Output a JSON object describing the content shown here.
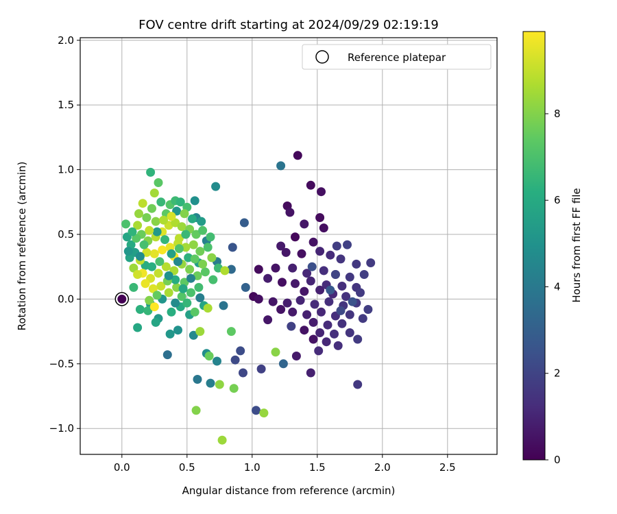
{
  "chart_data": {
    "type": "scatter",
    "title": "FOV centre drift starting at 2024/09/29 02:19:19",
    "xlabel": "Angular distance from reference (arcmin)",
    "ylabel": "Rotation from reference (arcmin)",
    "xlim": [
      -0.32,
      2.88
    ],
    "ylim": [
      -1.2,
      2.02
    ],
    "xticks": [
      "0.0",
      "0.5",
      "1.0",
      "1.5",
      "2.0",
      "2.5"
    ],
    "yticks": [
      "−1.0",
      "−0.5",
      "0.0",
      "0.5",
      "1.0",
      "1.5",
      "2.0"
    ],
    "grid": true,
    "legend": {
      "position": "top-right",
      "entries": [
        "Reference platepar"
      ]
    },
    "reference_point": {
      "x": 0.0,
      "y": 0.0
    },
    "colorbar": {
      "label": "Hours from first FF file",
      "min": 0,
      "max": 9.9,
      "ticks": [
        "0",
        "2",
        "4",
        "6",
        "8"
      ],
      "colormap": "viridis"
    },
    "series": [
      {
        "points": [
          [
            1.35,
            1.11,
            0.2
          ],
          [
            1.45,
            0.88,
            0.3
          ],
          [
            1.53,
            0.83,
            0.4
          ],
          [
            1.27,
            0.72,
            0.3
          ],
          [
            1.29,
            0.67,
            0.5
          ],
          [
            1.52,
            0.63,
            0.3
          ],
          [
            1.4,
            0.58,
            0.6
          ],
          [
            1.55,
            0.55,
            0.4
          ],
          [
            1.33,
            0.48,
            0.2
          ],
          [
            1.47,
            0.44,
            0.5
          ],
          [
            1.22,
            0.41,
            0.7
          ],
          [
            1.65,
            0.41,
            1.8
          ],
          [
            1.73,
            0.42,
            1.9
          ],
          [
            1.26,
            0.36,
            0.6
          ],
          [
            1.38,
            0.35,
            0.4
          ],
          [
            1.52,
            0.37,
            1.0
          ],
          [
            1.6,
            0.34,
            1.2
          ],
          [
            1.68,
            0.31,
            1.5
          ],
          [
            1.8,
            0.27,
            1.6
          ],
          [
            1.91,
            0.28,
            1.7
          ],
          [
            1.05,
            0.23,
            0.3
          ],
          [
            1.18,
            0.24,
            0.5
          ],
          [
            1.31,
            0.24,
            0.9
          ],
          [
            1.42,
            0.2,
            1.1
          ],
          [
            1.55,
            0.22,
            1.3
          ],
          [
            1.64,
            0.19,
            1.4
          ],
          [
            1.75,
            0.17,
            1.6
          ],
          [
            1.86,
            0.19,
            1.8
          ],
          [
            1.12,
            0.16,
            0.8
          ],
          [
            1.23,
            0.13,
            0.4
          ],
          [
            1.33,
            0.12,
            0.7
          ],
          [
            1.45,
            0.14,
            1.0
          ],
          [
            1.57,
            0.11,
            1.2
          ],
          [
            1.69,
            0.1,
            1.3
          ],
          [
            1.8,
            0.09,
            1.5
          ],
          [
            1.4,
            0.06,
            0.6
          ],
          [
            1.52,
            0.07,
            0.9
          ],
          [
            1.62,
            0.04,
            1.1
          ],
          [
            1.72,
            0.02,
            1.4
          ],
          [
            1.83,
            0.05,
            1.7
          ],
          [
            1.01,
            0.02,
            0.2
          ],
          [
            1.05,
            0.0,
            0.4
          ],
          [
            1.16,
            -0.02,
            0.6
          ],
          [
            1.27,
            -0.03,
            0.8
          ],
          [
            1.37,
            -0.01,
            1.0
          ],
          [
            1.48,
            -0.04,
            1.2
          ],
          [
            1.59,
            -0.02,
            1.3
          ],
          [
            1.7,
            -0.05,
            1.5
          ],
          [
            1.8,
            -0.03,
            1.6
          ],
          [
            1.89,
            -0.08,
            1.8
          ],
          [
            1.22,
            -0.08,
            0.5
          ],
          [
            1.31,
            -0.1,
            0.7
          ],
          [
            1.42,
            -0.12,
            0.9
          ],
          [
            1.53,
            -0.1,
            1.1
          ],
          [
            1.64,
            -0.13,
            1.3
          ],
          [
            1.75,
            -0.12,
            1.5
          ],
          [
            1.85,
            -0.15,
            1.7
          ],
          [
            1.12,
            -0.16,
            0.6
          ],
          [
            1.47,
            -0.18,
            0.8
          ],
          [
            1.58,
            -0.2,
            1.2
          ],
          [
            1.69,
            -0.19,
            1.4
          ],
          [
            1.3,
            -0.21,
            1.9
          ],
          [
            1.4,
            -0.24,
            0.5
          ],
          [
            1.52,
            -0.26,
            1.0
          ],
          [
            1.63,
            -0.27,
            1.3
          ],
          [
            1.75,
            -0.26,
            1.5
          ],
          [
            1.47,
            -0.31,
            0.5
          ],
          [
            1.57,
            -0.33,
            1.1
          ],
          [
            1.66,
            -0.36,
            1.3
          ],
          [
            1.81,
            -0.31,
            1.7
          ],
          [
            1.34,
            -0.44,
            0.7
          ],
          [
            1.51,
            -0.4,
            1.2
          ],
          [
            1.45,
            -0.57,
            0.9
          ],
          [
            1.81,
            -0.66,
            1.6
          ],
          [
            1.07,
            -0.54,
            1.9
          ],
          [
            0.93,
            -0.57,
            2.1
          ],
          [
            0.87,
            -0.47,
            2.2
          ],
          [
            0.91,
            -0.4,
            2.3
          ],
          [
            1.03,
            -0.86,
            2.3
          ],
          [
            0.85,
            0.4,
            2.6
          ],
          [
            0.94,
            0.59,
            2.9
          ],
          [
            0.84,
            0.23,
            3.4
          ],
          [
            0.95,
            0.09,
            3.1
          ],
          [
            1.22,
            1.03,
            3.8
          ],
          [
            1.24,
            -0.5,
            3.2
          ],
          [
            1.46,
            0.25,
            2.4
          ],
          [
            1.64,
            0.19,
            2.0
          ],
          [
            1.68,
            -0.09,
            2.2
          ],
          [
            1.77,
            -0.02,
            2.5
          ],
          [
            1.6,
            0.07,
            2.7
          ],
          [
            0.72,
            0.87,
            4.7
          ],
          [
            0.57,
            0.63,
            4.5
          ],
          [
            0.65,
            0.45,
            4.3
          ],
          [
            0.78,
            -0.05,
            3.8
          ],
          [
            0.73,
            0.29,
            4.1
          ],
          [
            0.59,
            0.28,
            5.5
          ],
          [
            0.35,
            -0.43,
            3.6
          ],
          [
            0.58,
            -0.62,
            3.9
          ],
          [
            0.68,
            -0.65,
            4.2
          ],
          [
            0.73,
            -0.48,
            4.4
          ],
          [
            0.65,
            -0.42,
            4.8
          ],
          [
            0.55,
            -0.28,
            4.6
          ],
          [
            0.43,
            -0.24,
            5.0
          ],
          [
            0.37,
            -0.27,
            5.2
          ],
          [
            0.28,
            -0.15,
            5.3
          ],
          [
            0.52,
            -0.12,
            5.6
          ],
          [
            0.63,
            -0.05,
            5.8
          ],
          [
            0.45,
            -0.06,
            6.0
          ],
          [
            0.38,
            -0.1,
            6.2
          ],
          [
            0.31,
            0.0,
            5.1
          ],
          [
            0.22,
            -0.04,
            5.4
          ],
          [
            0.14,
            -0.08,
            6.3
          ],
          [
            0.12,
            -0.22,
            5.9
          ],
          [
            0.2,
            -0.09,
            6.5
          ],
          [
            0.09,
            0.09,
            6.6
          ],
          [
            0.18,
            0.26,
            6.1
          ],
          [
            0.06,
            0.32,
            5.7
          ],
          [
            0.04,
            0.48,
            5.8
          ],
          [
            0.07,
            0.42,
            6.0
          ],
          [
            0.1,
            0.36,
            5.5
          ],
          [
            0.03,
            0.58,
            7.0
          ],
          [
            0.22,
            0.98,
            6.4
          ],
          [
            0.28,
            0.9,
            7.3
          ],
          [
            0.25,
            0.82,
            8.5
          ],
          [
            0.16,
            0.74,
            8.9
          ],
          [
            0.3,
            0.75,
            6.6
          ],
          [
            0.37,
            0.73,
            7.2
          ],
          [
            0.41,
            0.76,
            6.7
          ],
          [
            0.45,
            0.75,
            6.4
          ],
          [
            0.5,
            0.71,
            6.9
          ],
          [
            0.56,
            0.76,
            4.9
          ],
          [
            0.42,
            0.68,
            5.2
          ],
          [
            0.34,
            0.66,
            7.4
          ],
          [
            0.26,
            0.6,
            8.1
          ],
          [
            0.19,
            0.63,
            7.8
          ],
          [
            0.13,
            0.66,
            8.3
          ],
          [
            0.12,
            0.57,
            8.6
          ],
          [
            0.15,
            0.5,
            7.6
          ],
          [
            0.2,
            0.45,
            8.0
          ],
          [
            0.26,
            0.48,
            8.8
          ],
          [
            0.31,
            0.52,
            9.4
          ],
          [
            0.36,
            0.57,
            9.1
          ],
          [
            0.41,
            0.59,
            8.7
          ],
          [
            0.46,
            0.56,
            8.4
          ],
          [
            0.52,
            0.54,
            7.9
          ],
          [
            0.57,
            0.5,
            7.5
          ],
          [
            0.62,
            0.53,
            7.1
          ],
          [
            0.68,
            0.48,
            6.8
          ],
          [
            0.66,
            0.4,
            7.0
          ],
          [
            0.6,
            0.37,
            7.7
          ],
          [
            0.55,
            0.42,
            8.2
          ],
          [
            0.49,
            0.4,
            8.5
          ],
          [
            0.43,
            0.43,
            9.0
          ],
          [
            0.37,
            0.4,
            9.6
          ],
          [
            0.31,
            0.38,
            9.8
          ],
          [
            0.25,
            0.35,
            9.5
          ],
          [
            0.19,
            0.36,
            9.2
          ],
          [
            0.14,
            0.3,
            8.9
          ],
          [
            0.09,
            0.24,
            8.4
          ],
          [
            0.16,
            0.2,
            9.7
          ],
          [
            0.22,
            0.16,
            9.3
          ],
          [
            0.28,
            0.2,
            9.0
          ],
          [
            0.34,
            0.25,
            8.8
          ],
          [
            0.4,
            0.22,
            8.6
          ],
          [
            0.46,
            0.27,
            8.3
          ],
          [
            0.52,
            0.23,
            7.9
          ],
          [
            0.58,
            0.18,
            7.6
          ],
          [
            0.64,
            0.21,
            7.3
          ],
          [
            0.7,
            0.15,
            6.9
          ],
          [
            0.74,
            0.24,
            6.7
          ],
          [
            0.79,
            0.22,
            8.7
          ],
          [
            0.48,
            0.13,
            7.4
          ],
          [
            0.42,
            0.09,
            8.1
          ],
          [
            0.36,
            0.05,
            8.6
          ],
          [
            0.3,
            0.1,
            9.1
          ],
          [
            0.24,
            0.08,
            9.4
          ],
          [
            0.18,
            0.12,
            9.6
          ],
          [
            0.12,
            0.19,
            9.2
          ],
          [
            0.21,
            -0.01,
            8.0
          ],
          [
            0.27,
            0.03,
            7.5
          ],
          [
            0.46,
            0.02,
            7.2
          ],
          [
            0.53,
            0.05,
            7.0
          ],
          [
            0.59,
            0.09,
            6.8
          ],
          [
            0.5,
            -0.03,
            6.5
          ],
          [
            0.56,
            -0.1,
            7.3
          ],
          [
            0.25,
            -0.06,
            9.9
          ],
          [
            0.66,
            -0.07,
            8.6
          ],
          [
            0.6,
            -0.25,
            8.4
          ],
          [
            0.84,
            -0.25,
            7.4
          ],
          [
            0.67,
            -0.44,
            7.6
          ],
          [
            0.75,
            -0.66,
            8.2
          ],
          [
            0.57,
            -0.86,
            8.0
          ],
          [
            0.86,
            -0.69,
            7.8
          ],
          [
            1.18,
            -0.41,
            8.1
          ],
          [
            1.09,
            -0.88,
            8.3
          ],
          [
            0.77,
            -1.09,
            8.4
          ],
          [
            0.4,
            0.33,
            9.7
          ],
          [
            0.44,
            0.47,
            8.9
          ],
          [
            0.29,
            0.29,
            7.0
          ],
          [
            0.23,
            0.25,
            6.2
          ],
          [
            0.33,
            0.46,
            6.5
          ],
          [
            0.51,
            0.32,
            6.3
          ],
          [
            0.47,
            0.08,
            5.9
          ],
          [
            0.41,
            0.15,
            6.1
          ],
          [
            0.35,
            0.14,
            7.8
          ],
          [
            0.38,
            0.35,
            5.6
          ],
          [
            0.27,
            0.52,
            5.3
          ],
          [
            0.54,
            0.62,
            6.0
          ],
          [
            0.61,
            0.6,
            5.4
          ],
          [
            0.49,
            0.5,
            6.6
          ],
          [
            0.44,
            0.39,
            7.1
          ],
          [
            0.56,
            0.31,
            7.4
          ],
          [
            0.62,
            0.27,
            7.9
          ],
          [
            0.69,
            0.32,
            8.1
          ],
          [
            0.32,
            0.61,
            8.7
          ],
          [
            0.38,
            0.64,
            9.3
          ],
          [
            0.48,
            0.66,
            8.0
          ],
          [
            0.23,
            0.7,
            7.7
          ],
          [
            0.21,
            0.53,
            9.0
          ],
          [
            0.17,
            0.42,
            6.9
          ],
          [
            0.11,
            0.47,
            7.3
          ],
          [
            0.08,
            0.52,
            6.4
          ],
          [
            0.05,
            0.37,
            5.2
          ],
          [
            0.14,
            0.33,
            4.8
          ],
          [
            0.36,
            0.18,
            5.0
          ],
          [
            0.43,
            0.29,
            4.6
          ],
          [
            0.53,
            0.16,
            4.4
          ],
          [
            0.6,
            0.01,
            4.2
          ],
          [
            0.41,
            -0.03,
            4.7
          ],
          [
            0.26,
            -0.18,
            5.8
          ]
        ]
      }
    ]
  }
}
